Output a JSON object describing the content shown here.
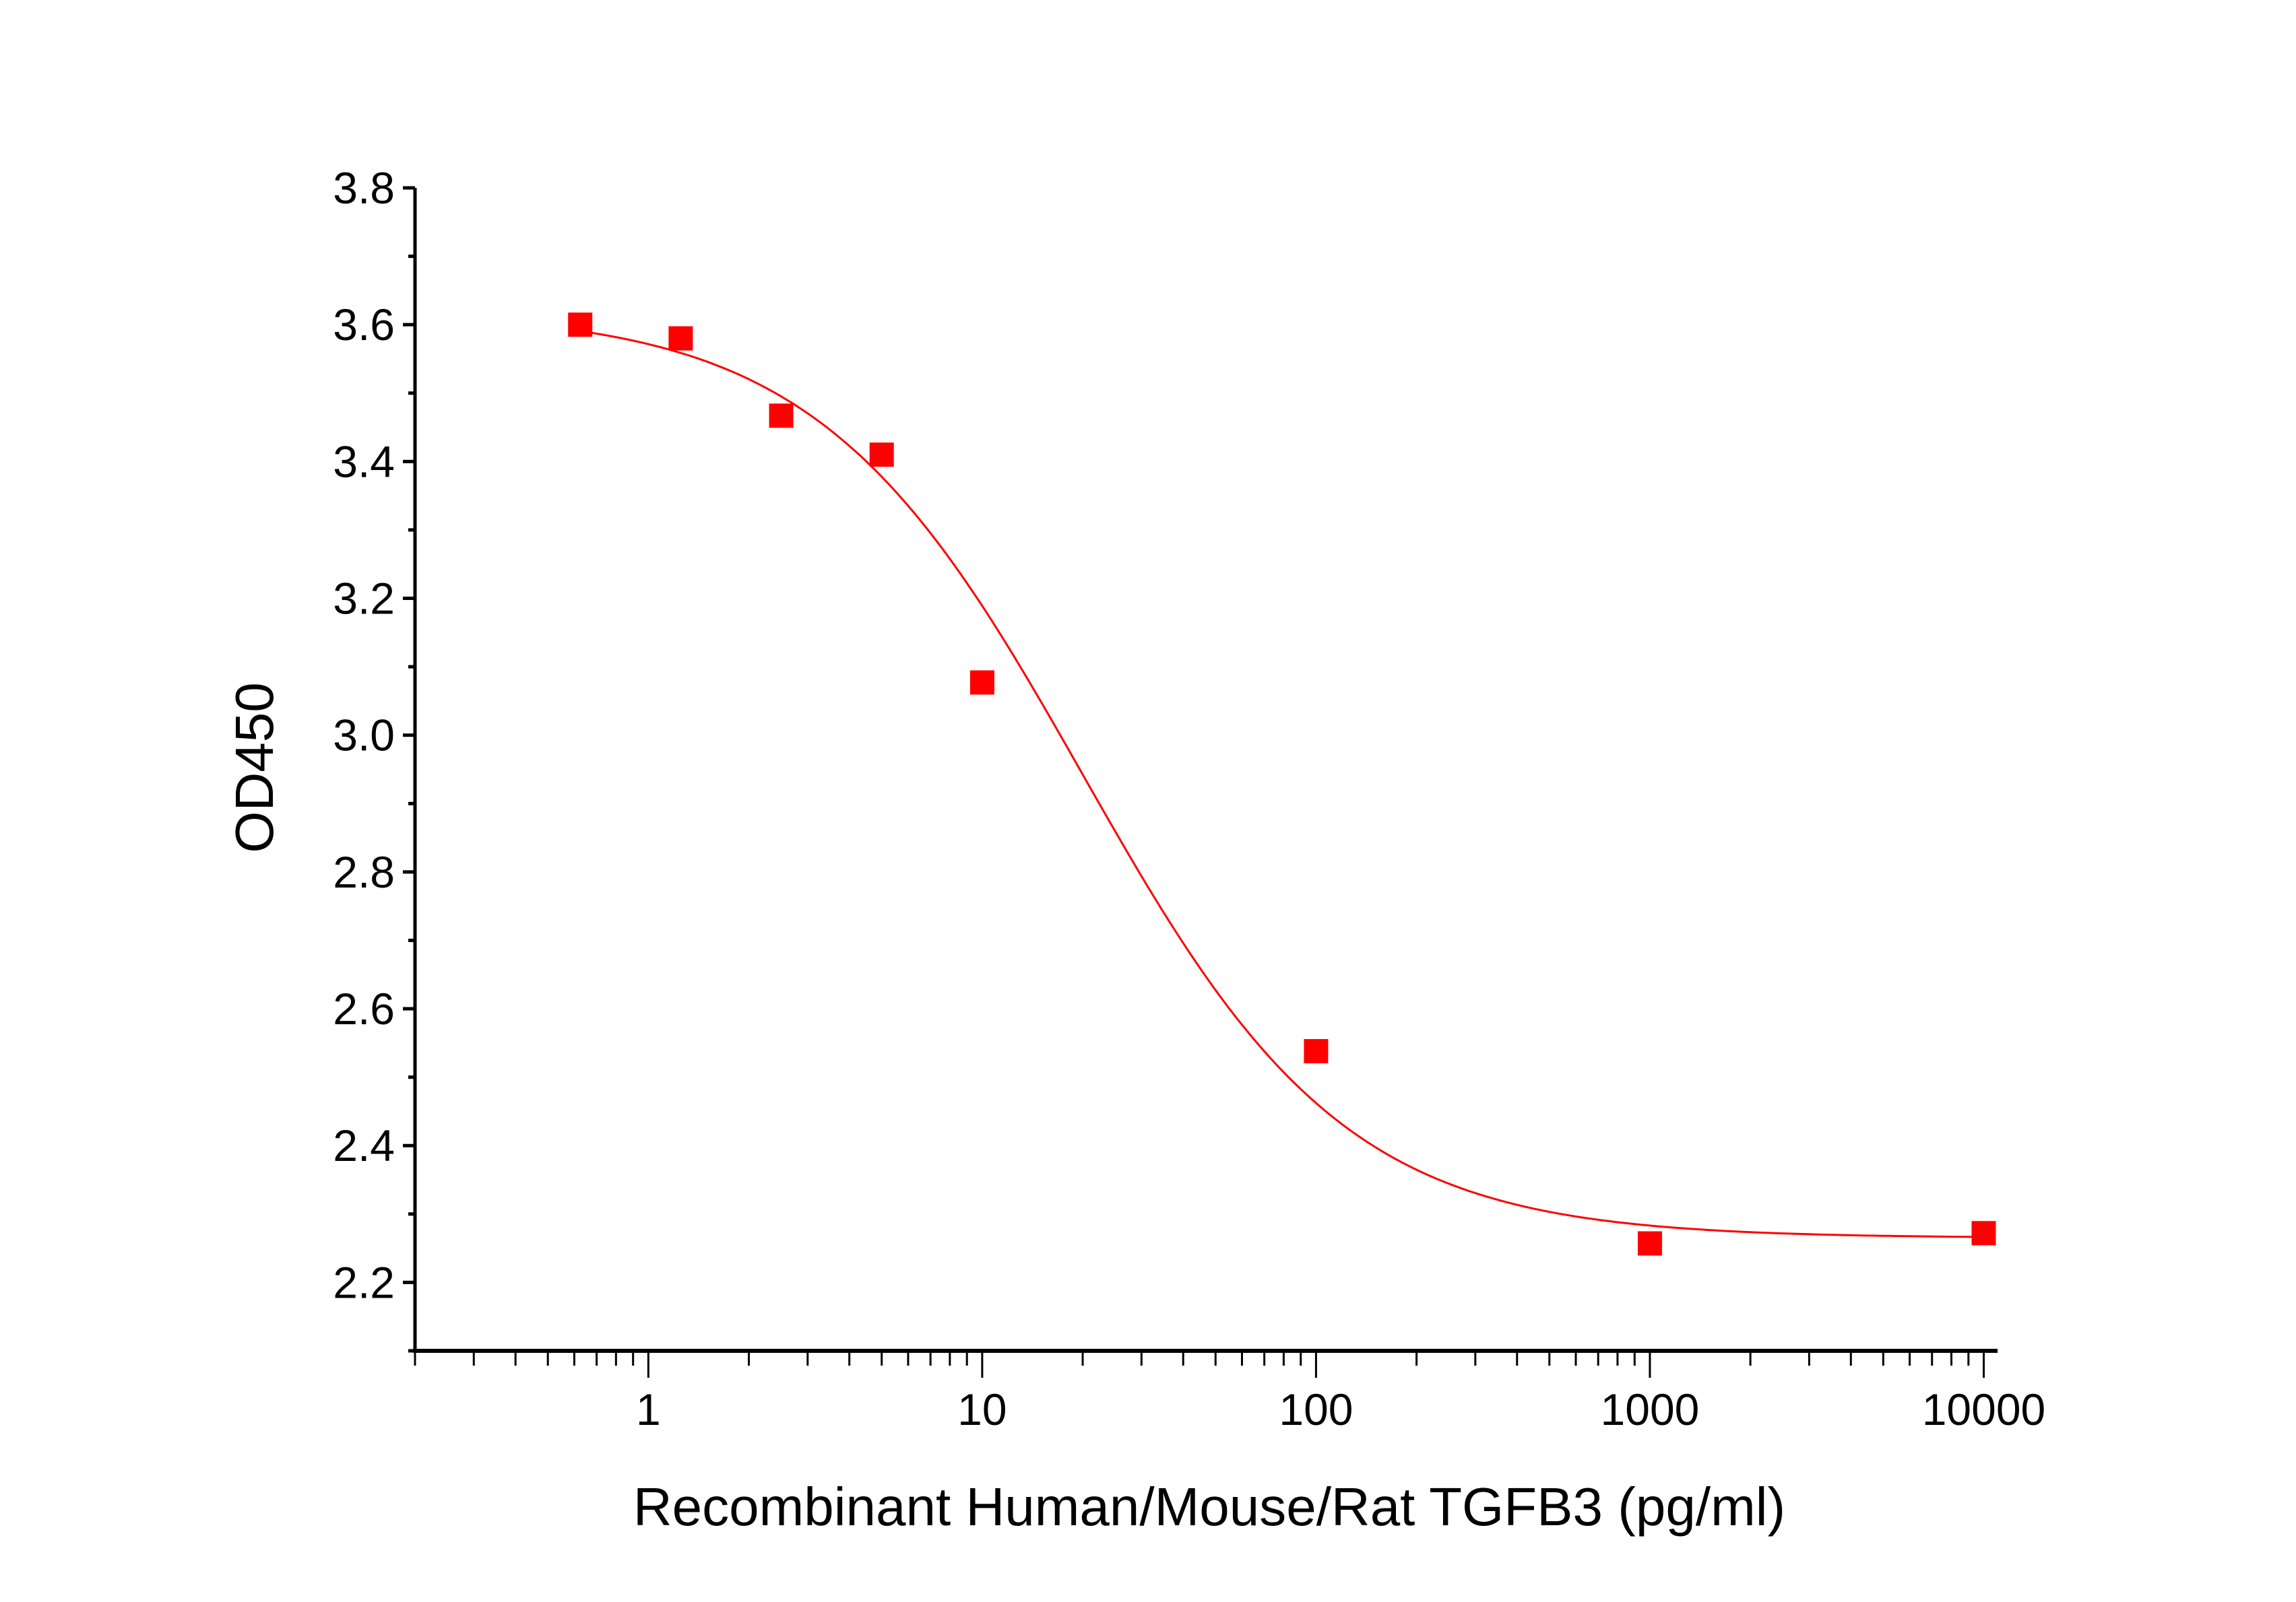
{
  "chart_data": {
    "type": "scatter",
    "xlabel": "Recombinant Human/Mouse/Rat TGFB3 (pg/ml)",
    "ylabel": "OD450",
    "x_scale": "log",
    "xlim": [
      0.2,
      11000
    ],
    "ylim": [
      2.1,
      3.8
    ],
    "x_ticks": [
      "1",
      "10",
      "100",
      "1000",
      "10000"
    ],
    "y_ticks": [
      "2.2",
      "2.4",
      "2.6",
      "2.8",
      "3.0",
      "3.2",
      "3.4",
      "3.6",
      "3.8"
    ],
    "grid": false,
    "color": "#ff0000",
    "series": [
      {
        "x": [
          0.625,
          1.25,
          2.5,
          5,
          10,
          100,
          1000,
          10000
        ],
        "y": [
          3.6,
          3.58,
          3.467,
          3.41,
          3.077,
          2.538,
          2.257,
          2.272
        ]
      }
    ],
    "fit": {
      "type": "4PL",
      "top": 3.62,
      "bottom": 2.265,
      "ec50": 20,
      "hill": 1.1
    }
  }
}
